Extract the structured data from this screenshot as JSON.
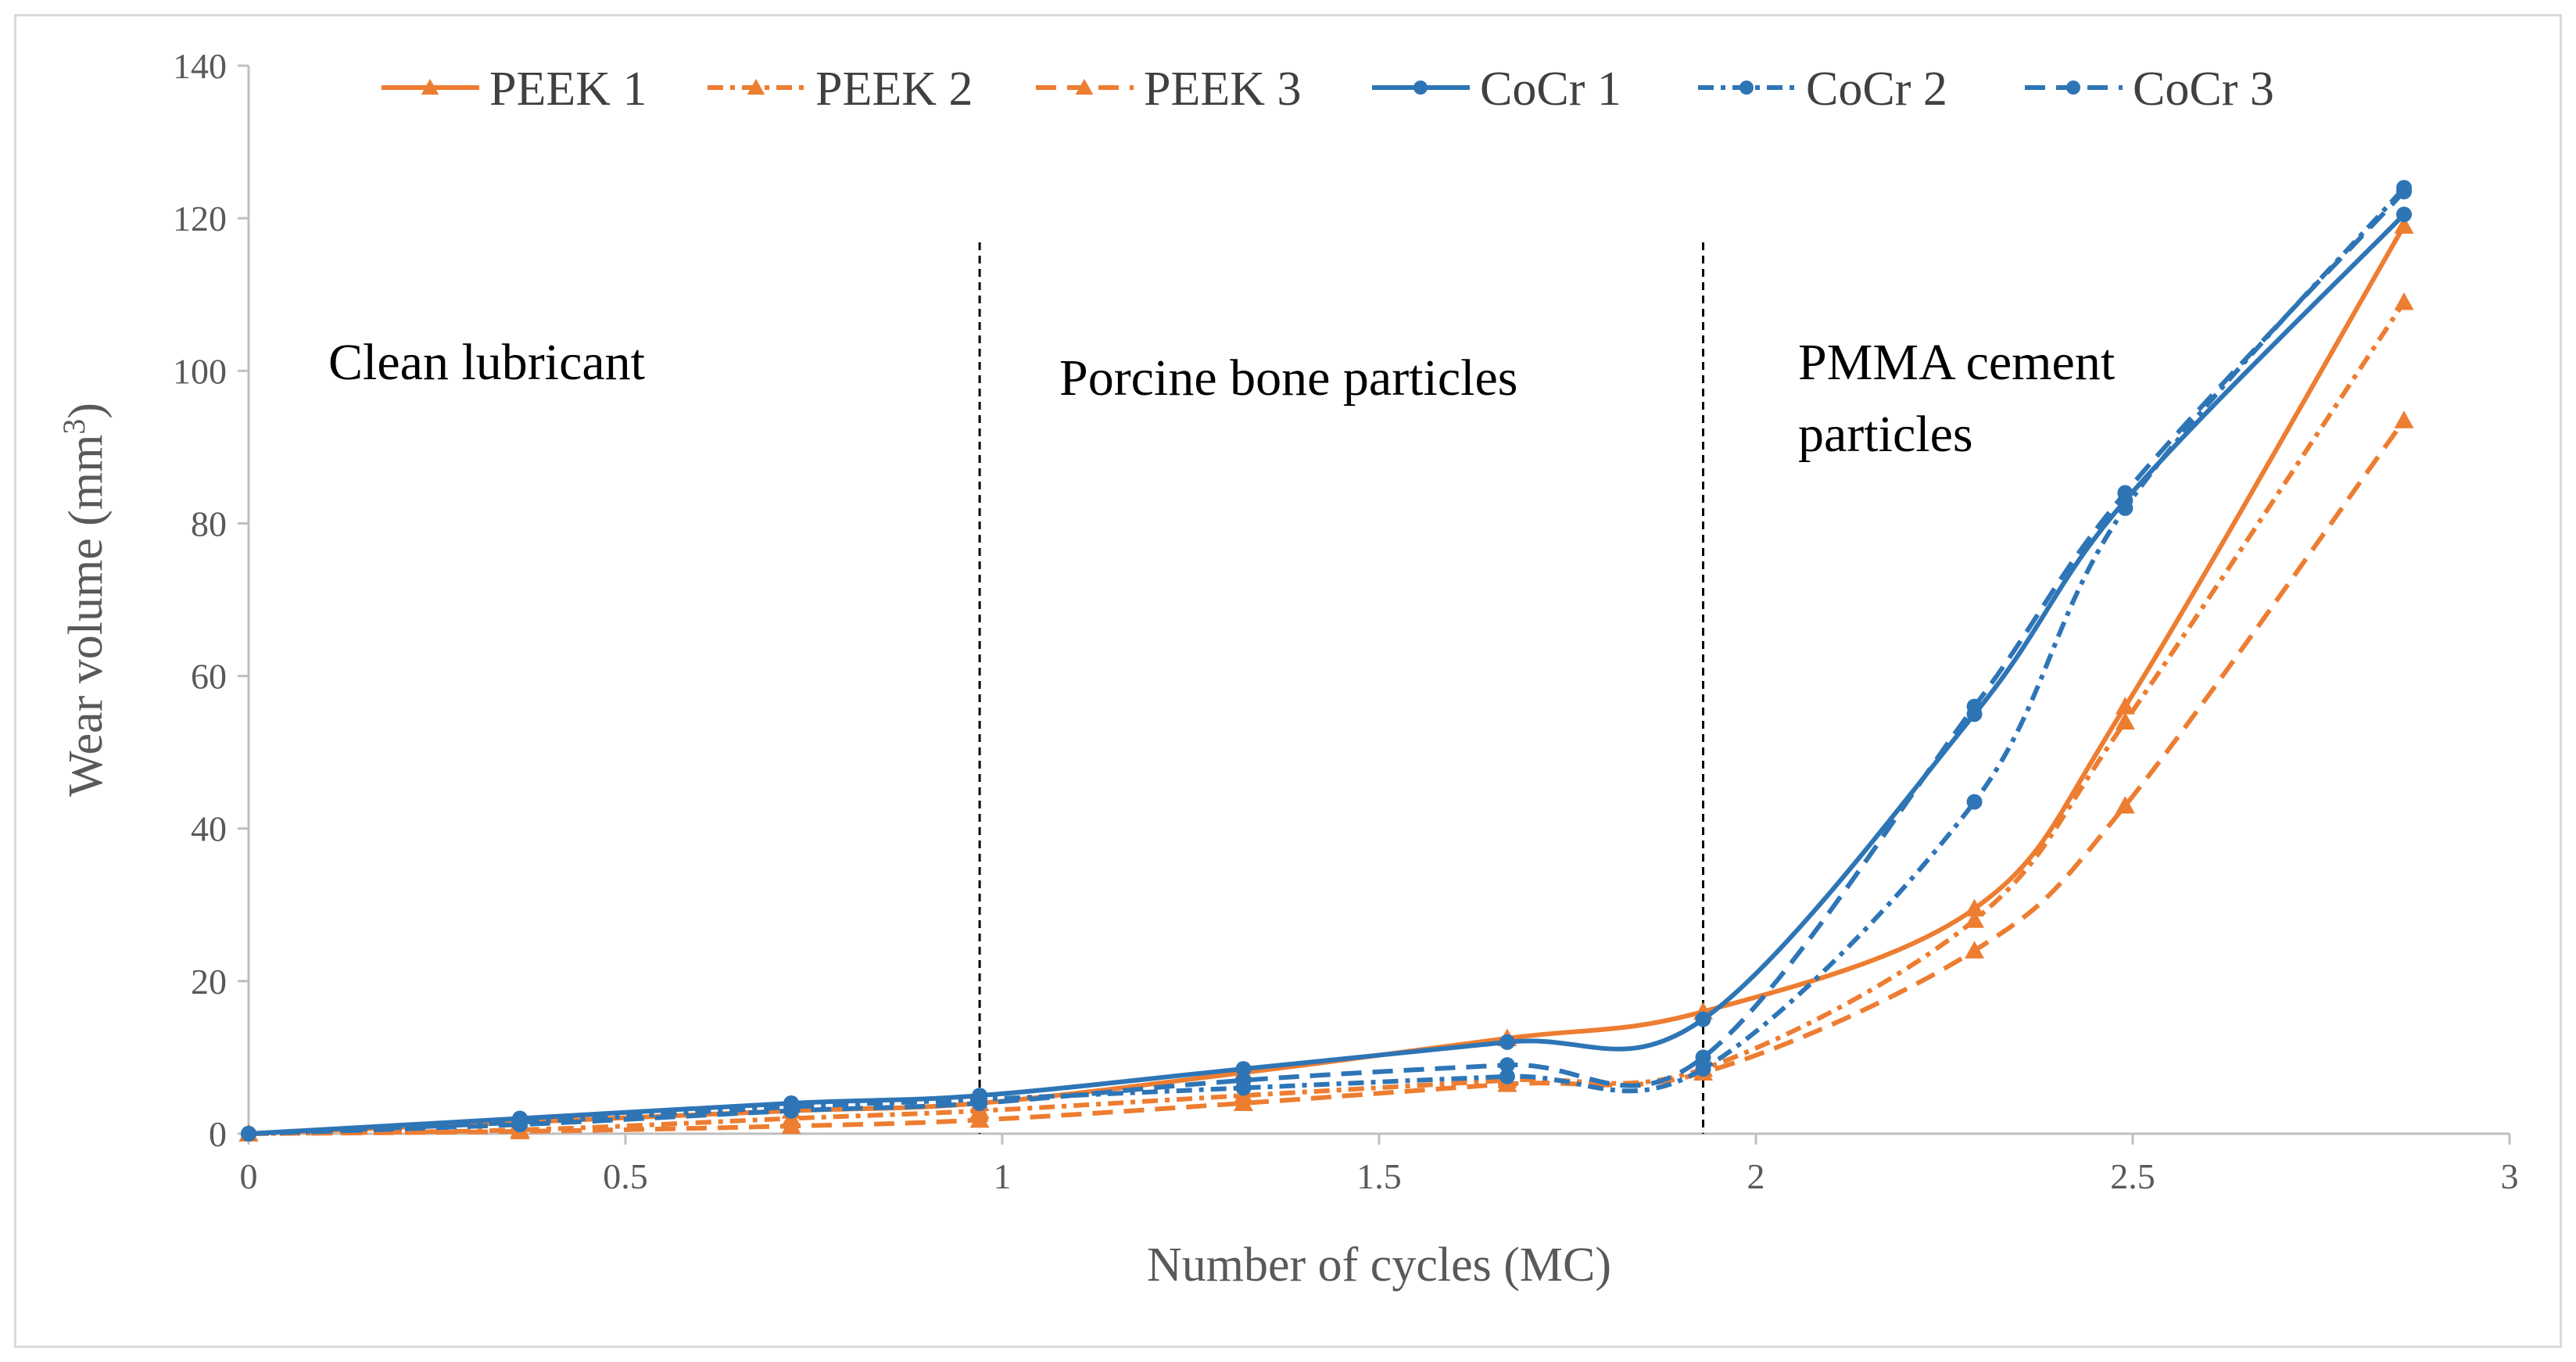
{
  "chart_data": {
    "type": "line",
    "title": "",
    "xlabel": "Number of cycles (MC)",
    "ylabel": "Wear volume (mm",
    "ylabel_superscript": "3",
    "ylabel_suffix": ")",
    "xlim": [
      0,
      3
    ],
    "ylim": [
      0,
      140
    ],
    "x_ticks": [
      0,
      0.5,
      1,
      1.5,
      2,
      2.5,
      3
    ],
    "x_tick_labels": [
      "0",
      "0.5",
      "1",
      "1.5",
      "2",
      "2.5",
      "3"
    ],
    "y_ticks": [
      0,
      20,
      40,
      60,
      80,
      100,
      120,
      140
    ],
    "y_tick_labels": [
      "0",
      "20",
      "40",
      "60",
      "80",
      "100",
      "120",
      "140"
    ],
    "grid": false,
    "legend_position": "top",
    "x": [
      0,
      0.36,
      0.72,
      0.97,
      1.32,
      1.67,
      1.93,
      2.29,
      2.49,
      2.86
    ],
    "series": [
      {
        "name": "PEEK 1",
        "color": "#ed7d31",
        "dash": "solid",
        "marker": "triangle",
        "values": [
          0,
          1.5,
          3,
          4,
          8,
          12.5,
          16,
          29.5,
          56,
          119
        ]
      },
      {
        "name": "PEEK 2",
        "color": "#ed7d31",
        "dash": "dashdot",
        "marker": "triangle",
        "values": [
          0,
          0.5,
          2,
          3,
          5,
          7,
          8.5,
          28,
          54,
          109
        ]
      },
      {
        "name": "PEEK 3",
        "color": "#ed7d31",
        "dash": "dashed",
        "marker": "triangle",
        "values": [
          0,
          0.3,
          1,
          1.8,
          4,
          6.5,
          8,
          24,
          43,
          93.5
        ]
      },
      {
        "name": "CoCr 1",
        "color": "#2e75b6",
        "dash": "solid",
        "marker": "circle",
        "values": [
          0,
          2,
          4,
          5,
          8.5,
          12,
          15,
          55,
          83,
          120.5
        ]
      },
      {
        "name": "CoCr 2",
        "color": "#2e75b6",
        "dash": "dashdot",
        "marker": "circle",
        "values": [
          0,
          1.5,
          3.5,
          4.5,
          6,
          7.5,
          8.5,
          43.5,
          82,
          124
        ]
      },
      {
        "name": "CoCr 3",
        "color": "#2e75b6",
        "dash": "dashed",
        "marker": "circle",
        "values": [
          0,
          1.2,
          3,
          4,
          7,
          9,
          10,
          56,
          84,
          123.5
        ]
      }
    ],
    "vertical_lines": [
      0.97,
      1.93
    ],
    "annotations": [
      {
        "lines": [
          "Clean lubricant"
        ]
      },
      {
        "lines": [
          "Porcine bone particles"
        ]
      },
      {
        "lines": [
          "PMMA cement",
          "particles"
        ]
      }
    ]
  }
}
